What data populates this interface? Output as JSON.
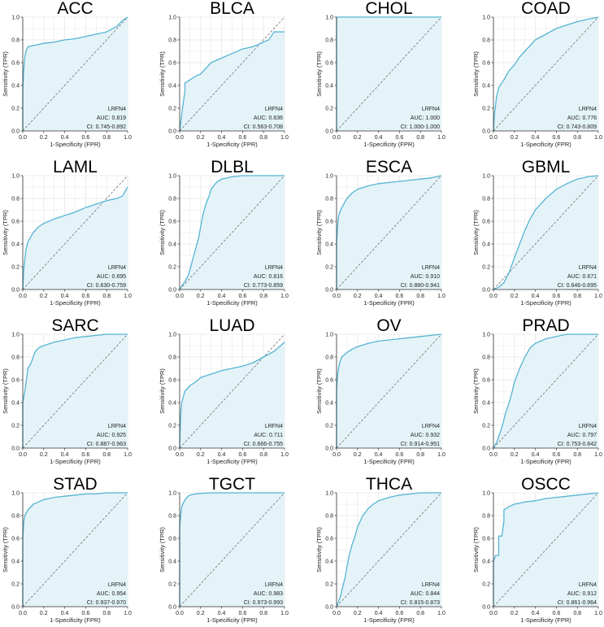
{
  "figure": {
    "gene": "LRFN4",
    "xlabel": "1-Specificity (FPR)",
    "ylabel": "Sensitivity (TPR)",
    "ticks": [
      "0.0",
      "0.2",
      "0.4",
      "0.6",
      "0.8",
      "1.0"
    ],
    "colors": {
      "curve": "#56b4d3",
      "fill": "#e4f3f8",
      "grid": "#e6e6e6",
      "diagonal": "#808080",
      "axis": "#333333"
    }
  },
  "chart_data": [
    {
      "type": "line",
      "title": "ACC",
      "xlabel": "1-Specificity (FPR)",
      "ylabel": "Sensitivity (TPR)",
      "xlim": [
        0,
        1
      ],
      "ylim": [
        0,
        1
      ],
      "series_name": "LRFN4",
      "auc_text": "AUC: 0.819",
      "ci_text": "CI: 0.745-0.892",
      "x": [
        0,
        0,
        0.01,
        0.02,
        0.03,
        0.05,
        0.1,
        0.2,
        0.3,
        0.4,
        0.5,
        0.6,
        0.7,
        0.8,
        0.9,
        0.95,
        1.0
      ],
      "y": [
        0,
        0.35,
        0.55,
        0.65,
        0.7,
        0.74,
        0.75,
        0.77,
        0.78,
        0.8,
        0.81,
        0.83,
        0.85,
        0.87,
        0.92,
        0.97,
        1.0
      ]
    },
    {
      "type": "line",
      "title": "BLCA",
      "xlabel": "1-Specificity (FPR)",
      "ylabel": "Sensitivity (TPR)",
      "xlim": [
        0,
        1
      ],
      "ylim": [
        0,
        1
      ],
      "series_name": "LRFN4",
      "auc_text": "AUC: 0.636",
      "ci_text": "CI: 0.563-0.708",
      "x": [
        0,
        0.02,
        0.05,
        0.05,
        0.1,
        0.15,
        0.2,
        0.25,
        0.3,
        0.4,
        0.5,
        0.6,
        0.7,
        0.8,
        0.85,
        0.9,
        1.0
      ],
      "y": [
        0,
        0.15,
        0.35,
        0.42,
        0.45,
        0.48,
        0.5,
        0.55,
        0.6,
        0.64,
        0.68,
        0.72,
        0.74,
        0.78,
        0.8,
        0.87,
        0.87
      ]
    },
    {
      "type": "line",
      "title": "CHOL",
      "xlabel": "1-Specificity (FPR)",
      "ylabel": "Sensitivity (TPR)",
      "xlim": [
        0,
        1
      ],
      "ylim": [
        0,
        1
      ],
      "series_name": "LRFN4",
      "auc_text": "AUC: 1.000",
      "ci_text": "CI: 1.000-1.000",
      "x": [
        0,
        0,
        1.0
      ],
      "y": [
        0,
        1.0,
        1.0
      ]
    },
    {
      "type": "line",
      "title": "COAD",
      "xlabel": "1-Specificity (FPR)",
      "ylabel": "Sensitivity (TPR)",
      "xlim": [
        0,
        1
      ],
      "ylim": [
        0,
        1
      ],
      "series_name": "LRFN4",
      "auc_text": "AUC: 0.776",
      "ci_text": "CI: 0.743-0.809",
      "x": [
        0,
        0.01,
        0.03,
        0.05,
        0.1,
        0.15,
        0.2,
        0.25,
        0.3,
        0.35,
        0.4,
        0.5,
        0.6,
        0.7,
        0.8,
        0.9,
        1.0
      ],
      "y": [
        0,
        0.15,
        0.3,
        0.38,
        0.45,
        0.53,
        0.58,
        0.65,
        0.7,
        0.75,
        0.8,
        0.85,
        0.9,
        0.93,
        0.96,
        0.98,
        1.0
      ]
    },
    {
      "type": "line",
      "title": "LAML",
      "xlabel": "1-Specificity (FPR)",
      "ylabel": "Sensitivity (TPR)",
      "xlim": [
        0,
        1
      ],
      "ylim": [
        0,
        1
      ],
      "series_name": "LRFN4",
      "auc_text": "AUC: 0.695",
      "ci_text": "CI: 0.630-0.759",
      "x": [
        0,
        0.01,
        0.03,
        0.05,
        0.1,
        0.15,
        0.2,
        0.3,
        0.4,
        0.5,
        0.6,
        0.7,
        0.8,
        0.9,
        0.95,
        1.0
      ],
      "y": [
        0,
        0.18,
        0.35,
        0.42,
        0.5,
        0.55,
        0.58,
        0.62,
        0.65,
        0.68,
        0.72,
        0.75,
        0.78,
        0.8,
        0.82,
        0.9
      ]
    },
    {
      "type": "line",
      "title": "DLBL",
      "xlabel": "1-Specificity (FPR)",
      "ylabel": "Sensitivity (TPR)",
      "xlim": [
        0,
        1
      ],
      "ylim": [
        0,
        1
      ],
      "series_name": "LRFN4",
      "auc_text": "AUC: 0.816",
      "ci_text": "CI: 0.773-0.859",
      "x": [
        0,
        0.02,
        0.05,
        0.08,
        0.1,
        0.12,
        0.15,
        0.18,
        0.2,
        0.22,
        0.25,
        0.28,
        0.3,
        0.35,
        0.4,
        0.5,
        0.6,
        1.0
      ],
      "y": [
        0,
        0.03,
        0.07,
        0.12,
        0.18,
        0.25,
        0.35,
        0.45,
        0.55,
        0.65,
        0.75,
        0.82,
        0.88,
        0.94,
        0.97,
        0.99,
        1.0,
        1.0
      ]
    },
    {
      "type": "line",
      "title": "ESCA",
      "xlabel": "1-Specificity (FPR)",
      "ylabel": "Sensitivity (TPR)",
      "xlim": [
        0,
        1
      ],
      "ylim": [
        0,
        1
      ],
      "series_name": "LRFN4",
      "auc_text": "AUC: 0.910",
      "ci_text": "CI: 0.880-0.941",
      "x": [
        0,
        0,
        0.01,
        0.02,
        0.05,
        0.1,
        0.15,
        0.2,
        0.3,
        0.4,
        0.5,
        0.6,
        0.7,
        0.8,
        0.9,
        1.0
      ],
      "y": [
        0,
        0.4,
        0.55,
        0.65,
        0.72,
        0.8,
        0.85,
        0.88,
        0.91,
        0.93,
        0.94,
        0.95,
        0.96,
        0.97,
        0.98,
        1.0
      ]
    },
    {
      "type": "line",
      "title": "GBML",
      "xlabel": "1-Specificity (FPR)",
      "ylabel": "Sensitivity (TPR)",
      "xlim": [
        0,
        1
      ],
      "ylim": [
        0,
        1
      ],
      "series_name": "LRFN4",
      "auc_text": "AUC: 0.671",
      "ci_text": "CI: 0.646-0.695",
      "x": [
        0,
        0.05,
        0.1,
        0.15,
        0.2,
        0.25,
        0.3,
        0.35,
        0.4,
        0.5,
        0.6,
        0.7,
        0.8,
        0.9,
        1.0
      ],
      "y": [
        0,
        0.02,
        0.06,
        0.15,
        0.28,
        0.4,
        0.52,
        0.62,
        0.7,
        0.8,
        0.88,
        0.93,
        0.97,
        0.99,
        1.0
      ]
    },
    {
      "type": "line",
      "title": "SARC",
      "xlabel": "1-Specificity (FPR)",
      "ylabel": "Sensitivity (TPR)",
      "xlim": [
        0,
        1
      ],
      "ylim": [
        0,
        1
      ],
      "series_name": "LRFN4",
      "auc_text": "AUC: 0.925",
      "ci_text": "CI: 0.887-0.963",
      "x": [
        0,
        0,
        0.02,
        0.05,
        0.08,
        0.1,
        0.12,
        0.15,
        0.2,
        0.3,
        0.4,
        0.5,
        0.6,
        0.7,
        0.8,
        1.0
      ],
      "y": [
        0,
        0.4,
        0.5,
        0.7,
        0.75,
        0.8,
        0.85,
        0.88,
        0.9,
        0.93,
        0.95,
        0.97,
        0.98,
        0.99,
        1.0,
        1.0
      ]
    },
    {
      "type": "line",
      "title": "LUAD",
      "xlabel": "1-Specificity (FPR)",
      "ylabel": "Sensitivity (TPR)",
      "xlim": [
        0,
        1
      ],
      "ylim": [
        0,
        1
      ],
      "series_name": "LRFN4",
      "auc_text": "AUC: 0.711",
      "ci_text": "CI: 0.666-0.755",
      "x": [
        0,
        0.01,
        0.02,
        0.05,
        0.1,
        0.15,
        0.2,
        0.3,
        0.4,
        0.5,
        0.6,
        0.7,
        0.8,
        0.9,
        1.0
      ],
      "y": [
        0,
        0.3,
        0.4,
        0.5,
        0.55,
        0.58,
        0.62,
        0.65,
        0.68,
        0.7,
        0.72,
        0.75,
        0.8,
        0.85,
        0.93
      ]
    },
    {
      "type": "line",
      "title": "OV",
      "xlabel": "1-Specificity (FPR)",
      "ylabel": "Sensitivity (TPR)",
      "xlim": [
        0,
        1
      ],
      "ylim": [
        0,
        1
      ],
      "series_name": "LRFN4",
      "auc_text": "AUC: 0.932",
      "ci_text": "CI: 0.914-0.951",
      "x": [
        0,
        0,
        0.01,
        0.03,
        0.05,
        0.1,
        0.15,
        0.2,
        0.3,
        0.4,
        0.5,
        0.6,
        0.7,
        0.8,
        0.9,
        1.0
      ],
      "y": [
        0,
        0.5,
        0.65,
        0.75,
        0.8,
        0.84,
        0.87,
        0.89,
        0.92,
        0.94,
        0.95,
        0.96,
        0.97,
        0.98,
        0.99,
        1.0
      ]
    },
    {
      "type": "line",
      "title": "PRAD",
      "xlabel": "1-Specificity (FPR)",
      "ylabel": "Sensitivity (TPR)",
      "xlim": [
        0,
        1
      ],
      "ylim": [
        0,
        1
      ],
      "series_name": "LRFN4",
      "auc_text": "AUC: 0.797",
      "ci_text": "CI: 0.753-0.842",
      "x": [
        0,
        0.03,
        0.05,
        0.08,
        0.1,
        0.12,
        0.15,
        0.18,
        0.2,
        0.25,
        0.3,
        0.35,
        0.4,
        0.5,
        0.6,
        0.7,
        0.8,
        1.0
      ],
      "y": [
        0,
        0.05,
        0.1,
        0.18,
        0.25,
        0.32,
        0.4,
        0.5,
        0.58,
        0.7,
        0.8,
        0.88,
        0.92,
        0.96,
        0.98,
        1.0,
        1.0,
        1.0
      ]
    },
    {
      "type": "line",
      "title": "STAD",
      "xlabel": "1-Specificity (FPR)",
      "ylabel": "Sensitivity (TPR)",
      "xlim": [
        0,
        1
      ],
      "ylim": [
        0,
        1
      ],
      "series_name": "LRFN4",
      "auc_text": "AUC: 0.954",
      "ci_text": "CI: 0.937-0.970",
      "x": [
        0,
        0,
        0.01,
        0.02,
        0.05,
        0.1,
        0.15,
        0.2,
        0.3,
        0.4,
        0.5,
        0.6,
        0.7,
        0.8,
        1.0
      ],
      "y": [
        0,
        0.6,
        0.75,
        0.8,
        0.85,
        0.9,
        0.92,
        0.94,
        0.96,
        0.97,
        0.98,
        0.99,
        0.99,
        1.0,
        1.0
      ]
    },
    {
      "type": "line",
      "title": "TGCT",
      "xlabel": "1-Specificity (FPR)",
      "ylabel": "Sensitivity (TPR)",
      "xlim": [
        0,
        1
      ],
      "ylim": [
        0,
        1
      ],
      "series_name": "LRFN4",
      "auc_text": "AUC: 0.983",
      "ci_text": "CI: 0.973-0.993",
      "x": [
        0,
        0,
        0.01,
        0.02,
        0.04,
        0.06,
        0.08,
        0.1,
        0.15,
        0.2,
        0.3,
        0.5,
        0.7,
        1.0
      ],
      "y": [
        0,
        0.7,
        0.8,
        0.88,
        0.92,
        0.95,
        0.97,
        0.98,
        0.99,
        0.995,
        1.0,
        1.0,
        1.0,
        1.0
      ]
    },
    {
      "type": "line",
      "title": "THCA",
      "xlabel": "1-Specificity (FPR)",
      "ylabel": "Sensitivity (TPR)",
      "xlim": [
        0,
        1
      ],
      "ylim": [
        0,
        1
      ],
      "series_name": "LRFN4",
      "auc_text": "AUC: 0.844",
      "ci_text": "CI: 0.815-0.873",
      "x": [
        0,
        0.02,
        0.04,
        0.06,
        0.08,
        0.1,
        0.12,
        0.15,
        0.18,
        0.2,
        0.25,
        0.3,
        0.35,
        0.4,
        0.5,
        0.6,
        0.7,
        0.8,
        1.0
      ],
      "y": [
        0,
        0.05,
        0.1,
        0.18,
        0.25,
        0.35,
        0.45,
        0.55,
        0.63,
        0.7,
        0.8,
        0.86,
        0.9,
        0.93,
        0.96,
        0.98,
        0.99,
        1.0,
        1.0
      ]
    },
    {
      "type": "line",
      "title": "OSCC",
      "xlabel": "1-Specificity (FPR)",
      "ylabel": "Sensitivity (TPR)",
      "xlim": [
        0,
        1
      ],
      "ylim": [
        0,
        1
      ],
      "series_name": "LRFN4",
      "auc_text": "AUC: 0.912",
      "ci_text": "CI: 0.861-0.964",
      "x": [
        0,
        0,
        0.02,
        0.05,
        0.05,
        0.08,
        0.1,
        0.1,
        0.15,
        0.2,
        0.3,
        0.4,
        0.5,
        0.6,
        0.7,
        0.8,
        0.9,
        1.0
      ],
      "y": [
        0,
        0.4,
        0.45,
        0.45,
        0.62,
        0.62,
        0.75,
        0.85,
        0.88,
        0.9,
        0.92,
        0.93,
        0.95,
        0.96,
        0.97,
        0.98,
        0.99,
        1.0
      ]
    }
  ]
}
